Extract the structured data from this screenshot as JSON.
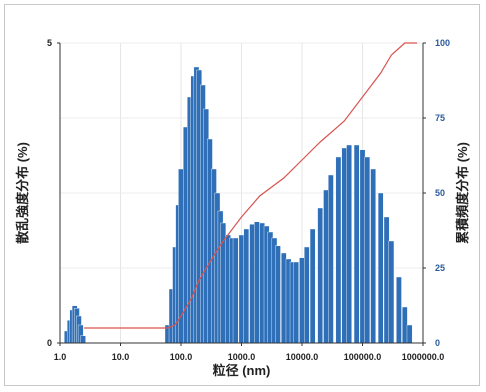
{
  "chart_data": {
    "type": "bar",
    "xlabel": "粒径 (nm)",
    "ylabel": "散乱強度分布 (%)",
    "y2label": "累積頻度分布 (%)",
    "x_scale": "log",
    "xlim": [
      1.0,
      1000000.0
    ],
    "ylim": [
      0,
      5
    ],
    "y2lim": [
      0,
      100
    ],
    "x_tick_labels": [
      "1.0",
      "10.0",
      "100.0",
      "1000.0",
      "10000.0",
      "100000.0",
      "1000000.0"
    ],
    "x_tick_values": [
      1,
      10,
      100,
      1000,
      10000,
      100000,
      1000000
    ],
    "y_tick_labels": [
      "0",
      "5"
    ],
    "y_tick_values": [
      0,
      5
    ],
    "y2_tick_labels": [
      "0",
      "25",
      "50",
      "75",
      "100"
    ],
    "y2_tick_values": [
      0,
      25,
      50,
      75,
      100
    ],
    "grid": true,
    "series": [
      {
        "kind": "bar",
        "color": "#2e6fb8",
        "x": [
          1.3,
          1.45,
          1.6,
          1.75,
          1.9,
          2.05,
          2.2,
          2.4,
          2.6,
          60,
          70,
          80,
          90,
          100,
          120,
          140,
          160,
          180,
          200,
          230,
          260,
          300,
          350,
          400,
          450,
          500,
          600,
          700,
          800,
          1000,
          1200,
          1500,
          1800,
          2200,
          2600,
          3000,
          3500,
          4000,
          5000,
          6000,
          7000,
          8000,
          10000,
          12000,
          15000,
          20000,
          25000,
          30000,
          40000,
          50000,
          60000,
          80000,
          100000,
          120000,
          150000,
          200000,
          250000,
          300000,
          400000,
          500000,
          600000
        ],
        "values": [
          0.2,
          0.38,
          0.55,
          0.62,
          0.58,
          0.45,
          0.3,
          0.12,
          0.0,
          0.3,
          0.9,
          1.6,
          2.3,
          2.9,
          3.6,
          4.1,
          4.45,
          4.6,
          4.55,
          4.3,
          3.9,
          3.4,
          2.9,
          2.5,
          2.2,
          2.0,
          1.8,
          1.75,
          1.75,
          1.8,
          1.9,
          1.98,
          2.02,
          2.0,
          1.95,
          1.85,
          1.75,
          1.62,
          1.5,
          1.4,
          1.35,
          1.35,
          1.42,
          1.6,
          1.9,
          2.25,
          2.55,
          2.8,
          3.1,
          3.25,
          3.3,
          3.3,
          3.22,
          3.1,
          2.9,
          2.5,
          2.1,
          1.7,
          1.1,
          0.6,
          0.3
        ]
      },
      {
        "kind": "line",
        "axis": "right",
        "color": "#d9544f",
        "x": [
          2.5,
          60,
          80,
          100,
          150,
          200,
          300,
          500,
          1000,
          2000,
          5000,
          10000,
          20000,
          50000,
          100000,
          200000,
          300000,
          500000,
          800000
        ],
        "values": [
          5,
          5,
          6,
          9,
          15,
          21,
          27,
          34,
          42,
          49,
          55,
          61,
          67,
          74,
          82,
          90,
          96,
          100,
          100
        ]
      }
    ]
  }
}
